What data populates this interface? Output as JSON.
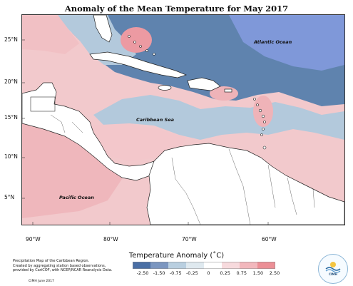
{
  "title": "Anomaly of the Mean Temperature for May 2017",
  "latitude_labels": [
    "25°N",
    "20°N",
    "15°N",
    "10°N",
    "5°N"
  ],
  "longitude_labels": [
    "90°W",
    "80°W",
    "70°W",
    "60°W"
  ],
  "ocean_labels": {
    "atlantic": "Atlantic Ocean",
    "caribbean": "Caribbean Sea",
    "pacific": "Pacific Ocean"
  },
  "legend": {
    "title": "Temperature Anomaly (˚C)",
    "tick_labels": [
      "-2.50",
      "-1.50",
      "-0.75",
      "-0.25",
      "0",
      "0.25",
      "0.75",
      "1.50",
      "2.50"
    ],
    "colors": [
      "#4a6fa5",
      "#7b96c0",
      "#b9cfe0",
      "#dfe9ef",
      "#ffffff",
      "#f7dadd",
      "#f2b7bc",
      "#ec8f96"
    ]
  },
  "footnote": {
    "lines": [
      "Precipitation Map of the Caribbean Region.",
      "Created by aggregating station based observations,",
      "provided by CariCOF, with NCEP/NCAR Reanalysis Data."
    ],
    "credit": "CIMH June 2017"
  },
  "logo": {
    "text": "CIMH"
  },
  "colors": {
    "land_fill": "#ffffff",
    "coast": "#222222",
    "strong_negative": "#5f83ae",
    "moderate_negative": "#8fabcc",
    "weak_negative": "#c3d6e3",
    "weak_positive": "#f5d3d6",
    "moderate_positive": "#efb3b8",
    "strong_positive": "#ea8f97"
  }
}
